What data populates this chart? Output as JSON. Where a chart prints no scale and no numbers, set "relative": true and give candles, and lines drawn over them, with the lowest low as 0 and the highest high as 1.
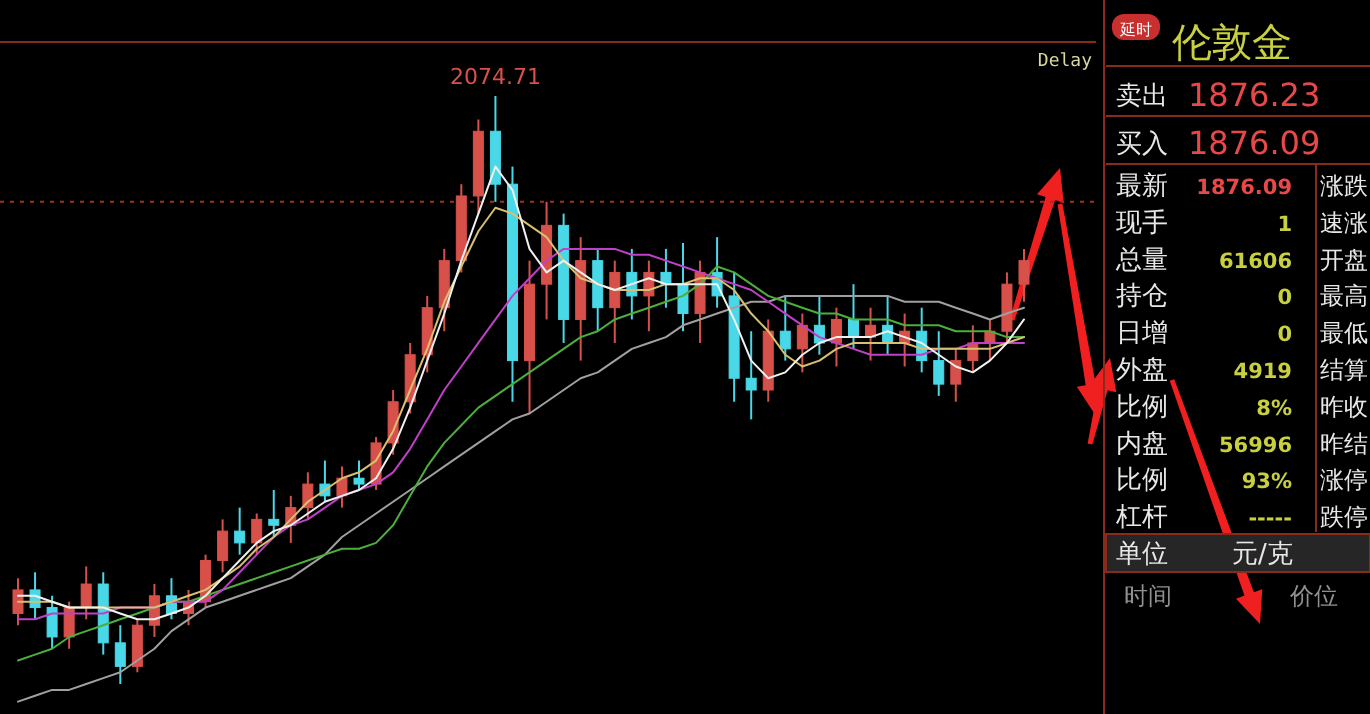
{
  "chart_data": [
    {
      "type": "candlestick",
      "relative": true,
      "categories": [
        null,
        null,
        null,
        null,
        null,
        null,
        null,
        null,
        null,
        null,
        null,
        null,
        null,
        null,
        null,
        null,
        null,
        null,
        null,
        null,
        null,
        null,
        null,
        null,
        null,
        null,
        null,
        null,
        null,
        null,
        null,
        null,
        null,
        null,
        null,
        null,
        null,
        null,
        null,
        null,
        null,
        null,
        null,
        null,
        null,
        null,
        null,
        null,
        null,
        null,
        null,
        null,
        null,
        null,
        null,
        null,
        null,
        null,
        null,
        null
      ],
      "ohlc": [
        [
          0.12,
          0.18,
          0.1,
          0.16
        ],
        [
          0.16,
          0.19,
          0.11,
          0.13
        ],
        [
          0.13,
          0.15,
          0.06,
          0.08
        ],
        [
          0.08,
          0.14,
          0.06,
          0.13
        ],
        [
          0.13,
          0.2,
          0.11,
          0.17
        ],
        [
          0.17,
          0.19,
          0.05,
          0.07
        ],
        [
          0.07,
          0.1,
          0.0,
          0.03
        ],
        [
          0.03,
          0.11,
          0.02,
          0.1
        ],
        [
          0.1,
          0.17,
          0.08,
          0.15
        ],
        [
          0.15,
          0.18,
          0.11,
          0.12
        ],
        [
          0.12,
          0.16,
          0.1,
          0.14
        ],
        [
          0.14,
          0.22,
          0.13,
          0.21
        ],
        [
          0.21,
          0.28,
          0.19,
          0.26
        ],
        [
          0.26,
          0.3,
          0.22,
          0.24
        ],
        [
          0.24,
          0.29,
          0.22,
          0.28
        ],
        [
          0.28,
          0.33,
          0.25,
          0.27
        ],
        [
          0.27,
          0.32,
          0.24,
          0.3
        ],
        [
          0.3,
          0.36,
          0.28,
          0.34
        ],
        [
          0.34,
          0.38,
          0.31,
          0.32
        ],
        [
          0.32,
          0.37,
          0.3,
          0.35
        ],
        [
          0.35,
          0.38,
          0.33,
          0.34
        ],
        [
          0.34,
          0.42,
          0.33,
          0.41
        ],
        [
          0.41,
          0.5,
          0.39,
          0.48
        ],
        [
          0.48,
          0.58,
          0.46,
          0.56
        ],
        [
          0.56,
          0.66,
          0.53,
          0.64
        ],
        [
          0.64,
          0.74,
          0.6,
          0.72
        ],
        [
          0.72,
          0.85,
          0.7,
          0.83
        ],
        [
          0.83,
          0.96,
          0.8,
          0.94
        ],
        [
          0.94,
          1.0,
          0.82,
          0.85
        ],
        [
          0.85,
          0.88,
          0.48,
          0.55
        ],
        [
          0.55,
          0.72,
          0.46,
          0.68
        ],
        [
          0.68,
          0.82,
          0.62,
          0.78
        ],
        [
          0.78,
          0.8,
          0.58,
          0.62
        ],
        [
          0.62,
          0.76,
          0.55,
          0.72
        ],
        [
          0.72,
          0.74,
          0.6,
          0.64
        ],
        [
          0.64,
          0.72,
          0.58,
          0.7
        ],
        [
          0.7,
          0.74,
          0.62,
          0.66
        ],
        [
          0.66,
          0.72,
          0.6,
          0.7
        ],
        [
          0.7,
          0.74,
          0.64,
          0.68
        ],
        [
          0.68,
          0.75,
          0.6,
          0.63
        ],
        [
          0.63,
          0.72,
          0.58,
          0.7
        ],
        [
          0.7,
          0.76,
          0.64,
          0.66
        ],
        [
          0.66,
          0.7,
          0.48,
          0.52
        ],
        [
          0.52,
          0.6,
          0.45,
          0.5
        ],
        [
          0.5,
          0.62,
          0.48,
          0.6
        ],
        [
          0.6,
          0.66,
          0.55,
          0.57
        ],
        [
          0.57,
          0.63,
          0.53,
          0.61
        ],
        [
          0.61,
          0.66,
          0.56,
          0.58
        ],
        [
          0.58,
          0.64,
          0.54,
          0.62
        ],
        [
          0.62,
          0.68,
          0.57,
          0.59
        ],
        [
          0.59,
          0.64,
          0.55,
          0.61
        ],
        [
          0.61,
          0.66,
          0.56,
          0.58
        ],
        [
          0.58,
          0.63,
          0.54,
          0.6
        ],
        [
          0.6,
          0.64,
          0.53,
          0.55
        ],
        [
          0.55,
          0.6,
          0.49,
          0.51
        ],
        [
          0.51,
          0.57,
          0.48,
          0.55
        ],
        [
          0.55,
          0.61,
          0.53,
          0.58
        ],
        [
          0.58,
          0.62,
          0.55,
          0.6
        ],
        [
          0.6,
          0.7,
          0.58,
          0.68
        ],
        [
          0.68,
          0.74,
          0.65,
          0.72
        ]
      ],
      "series": [
        {
          "type": "line",
          "color": "#a0a0a0",
          "values": [
            -0.03,
            -0.02,
            -0.01,
            -0.01,
            0.0,
            0.01,
            0.02,
            0.04,
            0.06,
            0.09,
            0.11,
            0.13,
            0.14,
            0.15,
            0.16,
            0.17,
            0.18,
            0.2,
            0.22,
            0.25,
            0.27,
            0.29,
            0.31,
            0.33,
            0.35,
            0.37,
            0.39,
            0.41,
            0.43,
            0.45,
            0.46,
            0.48,
            0.5,
            0.52,
            0.53,
            0.55,
            0.57,
            0.58,
            0.59,
            0.61,
            0.62,
            0.63,
            0.64,
            0.65,
            0.65,
            0.66,
            0.66,
            0.66,
            0.66,
            0.66,
            0.66,
            0.66,
            0.65,
            0.65,
            0.65,
            0.64,
            0.63,
            0.62,
            0.63,
            0.64
          ]
        },
        {
          "type": "line",
          "color": "#4caf3c",
          "values": [
            0.04,
            0.05,
            0.06,
            0.08,
            0.09,
            0.1,
            0.11,
            0.12,
            0.13,
            0.14,
            0.14,
            0.15,
            0.16,
            0.17,
            0.18,
            0.19,
            0.2,
            0.21,
            0.22,
            0.23,
            0.23,
            0.24,
            0.27,
            0.32,
            0.37,
            0.41,
            0.44,
            0.47,
            0.49,
            0.51,
            0.53,
            0.55,
            0.57,
            0.59,
            0.6,
            0.62,
            0.63,
            0.64,
            0.65,
            0.66,
            0.68,
            0.71,
            0.7,
            0.68,
            0.66,
            0.65,
            0.64,
            0.63,
            0.63,
            0.62,
            0.62,
            0.62,
            0.61,
            0.61,
            0.61,
            0.6,
            0.6,
            0.6,
            0.59,
            0.59
          ]
        },
        {
          "type": "line",
          "color": "#c040c8",
          "values": [
            0.11,
            0.11,
            0.12,
            0.12,
            0.12,
            0.12,
            0.13,
            0.13,
            0.13,
            0.14,
            0.14,
            0.14,
            0.16,
            0.19,
            0.22,
            0.25,
            0.27,
            0.28,
            0.3,
            0.32,
            0.33,
            0.34,
            0.36,
            0.4,
            0.45,
            0.5,
            0.54,
            0.58,
            0.62,
            0.66,
            0.69,
            0.72,
            0.74,
            0.74,
            0.74,
            0.74,
            0.73,
            0.73,
            0.72,
            0.71,
            0.7,
            0.69,
            0.68,
            0.67,
            0.65,
            0.63,
            0.61,
            0.59,
            0.58,
            0.57,
            0.56,
            0.56,
            0.56,
            0.56,
            0.57,
            0.57,
            0.58,
            0.58,
            0.58,
            0.58
          ]
        },
        {
          "type": "line",
          "color": "#d8c070",
          "values": [
            0.14,
            0.14,
            0.14,
            0.13,
            0.13,
            0.13,
            0.13,
            0.13,
            0.13,
            0.14,
            0.15,
            0.16,
            0.18,
            0.2,
            0.23,
            0.25,
            0.28,
            0.31,
            0.33,
            0.35,
            0.36,
            0.38,
            0.43,
            0.5,
            0.57,
            0.65,
            0.71,
            0.77,
            0.81,
            0.8,
            0.78,
            0.76,
            0.72,
            0.69,
            0.68,
            0.67,
            0.67,
            0.67,
            0.68,
            0.68,
            0.69,
            0.69,
            0.67,
            0.63,
            0.6,
            0.56,
            0.54,
            0.55,
            0.57,
            0.58,
            0.58,
            0.58,
            0.58,
            0.57,
            0.57,
            0.57,
            0.57,
            0.57,
            0.58,
            0.59
          ]
        },
        {
          "type": "line",
          "color": "#f0f0f0",
          "values": [
            0.15,
            0.15,
            0.14,
            0.13,
            0.13,
            0.13,
            0.12,
            0.11,
            0.11,
            0.12,
            0.13,
            0.15,
            0.18,
            0.21,
            0.24,
            0.26,
            0.27,
            0.29,
            0.31,
            0.32,
            0.33,
            0.35,
            0.4,
            0.47,
            0.55,
            0.63,
            0.72,
            0.8,
            0.88,
            0.84,
            0.74,
            0.7,
            0.72,
            0.7,
            0.68,
            0.67,
            0.68,
            0.69,
            0.68,
            0.68,
            0.68,
            0.68,
            0.62,
            0.55,
            0.52,
            0.53,
            0.56,
            0.58,
            0.59,
            0.59,
            0.59,
            0.6,
            0.59,
            0.58,
            0.56,
            0.54,
            0.53,
            0.55,
            0.58,
            0.62
          ]
        }
      ],
      "ref_lines": [
        {
          "axis": "y",
          "value": 0.82,
          "color": "#a03020",
          "line_style": "dotted"
        }
      ],
      "annotations": [
        {
          "text": "2074.71",
          "y": 1
        },
        "Delay"
      ]
    },
    {
      "type": "other",
      "title": "伦敦金",
      "annotations": [
        "延时",
        "卖出",
        "1876.23",
        "买入",
        "1876.09",
        "最新",
        "1876.09",
        "涨跌",
        "现手",
        "1",
        "速涨",
        "总量",
        "61606",
        "开盘",
        "持仓",
        "0",
        "最高",
        "日增",
        "0",
        "最低",
        "外盘",
        "4919",
        "结算",
        "比例",
        "8%",
        "昨收",
        "内盘",
        "56996",
        "昨结",
        "比例",
        "93%",
        "涨停",
        "杠杆",
        "-----",
        "跌停",
        "单位",
        "元/克",
        "时间",
        "价位"
      ]
    }
  ]
}
